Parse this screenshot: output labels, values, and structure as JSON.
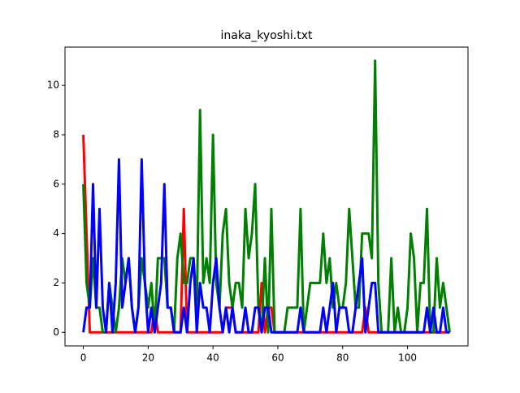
{
  "chart_data": {
    "type": "line",
    "title": "inaka_kyoshi.txt",
    "x": [
      0,
      1,
      2,
      3,
      4,
      5,
      6,
      7,
      8,
      9,
      10,
      11,
      12,
      13,
      14,
      15,
      16,
      17,
      18,
      19,
      20,
      21,
      22,
      23,
      24,
      25,
      26,
      27,
      28,
      29,
      30,
      31,
      32,
      33,
      34,
      35,
      36,
      37,
      38,
      39,
      40,
      41,
      42,
      43,
      44,
      45,
      46,
      47,
      48,
      49,
      50,
      51,
      52,
      53,
      54,
      55,
      56,
      57,
      58,
      59,
      60,
      61,
      62,
      63,
      64,
      65,
      66,
      67,
      68,
      69,
      70,
      71,
      72,
      73,
      74,
      75,
      76,
      77,
      78,
      79,
      80,
      81,
      82,
      83,
      84,
      85,
      86,
      87,
      88,
      89,
      90,
      91,
      92,
      93,
      94,
      95,
      96,
      97,
      98,
      99,
      100,
      101,
      102,
      103,
      104,
      105,
      106,
      107,
      108,
      109,
      110,
      111,
      112,
      113
    ],
    "series": [
      {
        "color": "#ff0000",
        "values": [
          8,
          4,
          0,
          0,
          0,
          0,
          0,
          0,
          0,
          0,
          0,
          0,
          0,
          0,
          0,
          0,
          0,
          0,
          0,
          0,
          0,
          0,
          1,
          0,
          0,
          0,
          0,
          0,
          0,
          0,
          0,
          5,
          0,
          0,
          0,
          0,
          0,
          0,
          0,
          0,
          0,
          0,
          0,
          0,
          1,
          1,
          1,
          0,
          0,
          0,
          0,
          0,
          0,
          0,
          0,
          2,
          0,
          1,
          1,
          0,
          0,
          0,
          0,
          0,
          0,
          0,
          0,
          0,
          0,
          0,
          0,
          0,
          0,
          0,
          0,
          0,
          0,
          0,
          0,
          0,
          0,
          0,
          0,
          0,
          0,
          0,
          0,
          1,
          0,
          0,
          0,
          0,
          0,
          0,
          0,
          0,
          0,
          0,
          0,
          0,
          0,
          0,
          0,
          0,
          0,
          0,
          0,
          0,
          0,
          0,
          0,
          0,
          0,
          0
        ]
      },
      {
        "color": "#008000",
        "values": [
          6,
          2,
          1,
          3,
          1,
          1,
          0,
          0,
          2,
          1,
          0,
          1,
          3,
          2,
          3,
          1,
          0,
          1,
          3,
          2,
          1,
          2,
          0,
          3,
          3,
          3,
          1,
          1,
          0,
          3,
          4,
          2,
          2,
          3,
          3,
          1,
          9,
          2,
          3,
          2,
          8,
          2,
          1,
          4,
          5,
          2,
          1,
          2,
          2,
          1,
          5,
          3,
          4,
          6,
          1,
          0,
          3,
          0,
          5,
          0,
          0,
          0,
          0,
          1,
          1,
          1,
          1,
          5,
          0,
          1,
          2,
          2,
          2,
          2,
          4,
          2,
          3,
          1,
          2,
          1,
          1,
          2,
          5,
          3,
          1,
          1,
          4,
          4,
          4,
          3,
          11,
          2,
          0,
          0,
          0,
          3,
          0,
          1,
          0,
          0,
          1,
          4,
          3,
          0,
          2,
          2,
          5,
          0,
          0,
          3,
          1,
          2,
          1,
          0
        ]
      },
      {
        "color": "#0000ff",
        "values": [
          0,
          1,
          1,
          6,
          1,
          5,
          1,
          0,
          2,
          0,
          2,
          7,
          1,
          2,
          3,
          1,
          0,
          1,
          7,
          2,
          0,
          1,
          0,
          1,
          2,
          6,
          1,
          1,
          0,
          0,
          0,
          1,
          0,
          2,
          3,
          0,
          2,
          1,
          1,
          0,
          2,
          3,
          1,
          0,
          1,
          0,
          1,
          0,
          0,
          0,
          1,
          0,
          0,
          1,
          1,
          0,
          1,
          1,
          0,
          0,
          0,
          0,
          0,
          0,
          0,
          0,
          0,
          1,
          0,
          0,
          0,
          0,
          0,
          0,
          1,
          0,
          1,
          2,
          0,
          1,
          1,
          1,
          0,
          0,
          1,
          2,
          3,
          0,
          1,
          2,
          2,
          0,
          0,
          0,
          0,
          0,
          0,
          0,
          0,
          0,
          0,
          0,
          0,
          0,
          0,
          0,
          1,
          0,
          1,
          0,
          0,
          1,
          0,
          0
        ]
      }
    ],
    "xlim": [
      -5.65,
      118.65
    ],
    "ylim": [
      -0.55,
      11.55
    ],
    "xticks": [
      0,
      20,
      40,
      60,
      80,
      100
    ],
    "yticks": [
      0,
      2,
      4,
      6,
      8,
      10
    ]
  }
}
